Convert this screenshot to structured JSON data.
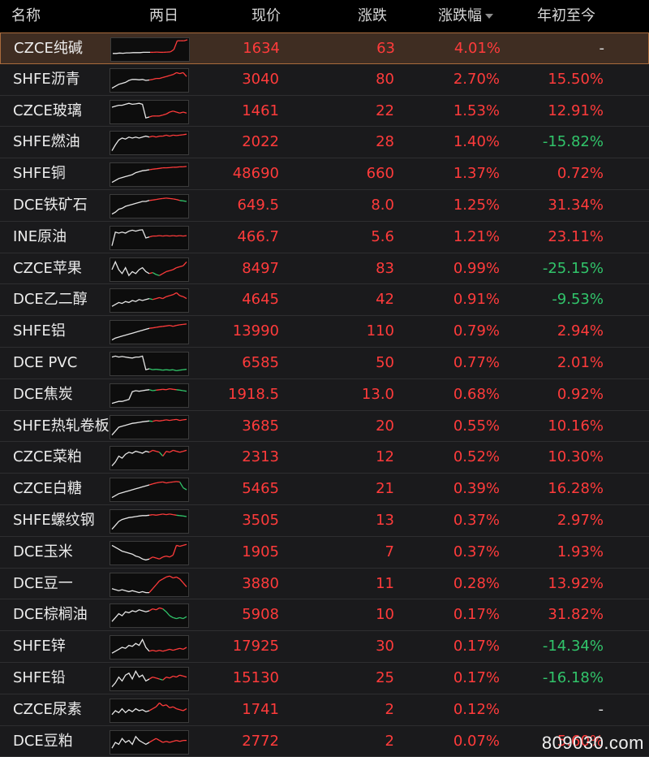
{
  "header": {
    "name": "名称",
    "chart": "两日",
    "price": "现价",
    "change": "涨跌",
    "pct": "涨跌幅",
    "ytd": "年初至今"
  },
  "colors": {
    "up": "#ff3b3b",
    "down": "#31c46a",
    "flat": "#e0e0e0"
  },
  "rows": [
    {
      "name": "CZCE纯碱",
      "price": "1634",
      "change": "63",
      "pct": "4.01%",
      "ytd": "-",
      "ytd_dir": "flat",
      "selected": true,
      "spark": [
        0.3,
        0.3,
        0.32,
        0.31,
        0.33,
        0.33,
        0.34,
        0.34,
        0.34,
        0.36,
        0.36,
        0.36,
        0.36,
        0.37,
        0.36,
        0.36,
        0.37,
        0.38,
        0.5,
        0.95,
        0.95,
        0.95,
        1.0
      ]
    },
    {
      "name": "SHFE沥青",
      "price": "3040",
      "change": "80",
      "pct": "2.70%",
      "ytd": "15.50%",
      "ytd_dir": "up",
      "spark": [
        0.1,
        0.2,
        0.3,
        0.35,
        0.4,
        0.5,
        0.55,
        0.55,
        0.53,
        0.55,
        0.5,
        0.52,
        0.55,
        0.6,
        0.6,
        0.65,
        0.7,
        0.75,
        0.8,
        0.9,
        0.85,
        0.9,
        0.7
      ]
    },
    {
      "name": "CZCE玻璃",
      "price": "1461",
      "change": "22",
      "pct": "1.53%",
      "ytd": "12.91%",
      "ytd_dir": "up",
      "spark": [
        0.75,
        0.8,
        0.85,
        0.85,
        0.9,
        0.95,
        0.9,
        0.92,
        0.95,
        0.9,
        0.2,
        0.25,
        0.3,
        0.3,
        0.3,
        0.35,
        0.4,
        0.5,
        0.55,
        0.5,
        0.45,
        0.5,
        0.45
      ]
    },
    {
      "name": "SHFE燃油",
      "price": "2022",
      "change": "28",
      "pct": "1.40%",
      "ytd": "-15.82%",
      "ytd_dir": "down",
      "spark": [
        0.1,
        0.4,
        0.65,
        0.75,
        0.7,
        0.8,
        0.75,
        0.8,
        0.75,
        0.8,
        0.85,
        0.8,
        0.85,
        0.8,
        0.85,
        0.85,
        0.9,
        0.85,
        0.9,
        0.88,
        0.9,
        0.92,
        0.95
      ]
    },
    {
      "name": "SHFE铜",
      "price": "48690",
      "change": "660",
      "pct": "1.37%",
      "ytd": "0.72%",
      "ytd_dir": "up",
      "spark": [
        0.1,
        0.2,
        0.3,
        0.35,
        0.4,
        0.45,
        0.5,
        0.6,
        0.65,
        0.7,
        0.72,
        0.75,
        0.78,
        0.8,
        0.82,
        0.85,
        0.85,
        0.86,
        0.88,
        0.88,
        0.9,
        0.9,
        0.92
      ]
    },
    {
      "name": "DCE铁矿石",
      "price": "649.5",
      "change": "8.0",
      "pct": "1.25%",
      "ytd": "31.34%",
      "ytd_dir": "up",
      "spark": [
        0.1,
        0.2,
        0.35,
        0.4,
        0.5,
        0.55,
        0.6,
        0.65,
        0.7,
        0.75,
        0.75,
        0.8,
        0.82,
        0.85,
        0.88,
        0.9,
        0.92,
        0.9,
        0.88,
        0.85,
        0.8,
        0.78,
        0.75
      ]
    },
    {
      "name": "INE原油",
      "price": "466.7",
      "change": "5.6",
      "pct": "1.21%",
      "ytd": "23.11%",
      "ytd_dir": "up",
      "spark": [
        0.1,
        0.8,
        0.75,
        0.8,
        0.75,
        0.85,
        0.9,
        0.85,
        0.9,
        0.92,
        0.5,
        0.55,
        0.6,
        0.6,
        0.62,
        0.6,
        0.62,
        0.6,
        0.62,
        0.6,
        0.62,
        0.6,
        0.62
      ]
    },
    {
      "name": "CZCE苹果",
      "price": "8497",
      "change": "83",
      "pct": "0.99%",
      "ytd": "-25.15%",
      "ytd_dir": "down",
      "spark": [
        0.5,
        0.9,
        0.5,
        0.3,
        0.6,
        0.2,
        0.4,
        0.3,
        0.5,
        0.6,
        0.4,
        0.3,
        0.35,
        0.25,
        0.2,
        0.3,
        0.4,
        0.45,
        0.5,
        0.6,
        0.65,
        0.7,
        0.9
      ]
    },
    {
      "name": "DCE乙二醇",
      "price": "4645",
      "change": "42",
      "pct": "0.91%",
      "ytd": "-9.53%",
      "ytd_dir": "down",
      "spark": [
        0.2,
        0.3,
        0.4,
        0.35,
        0.45,
        0.4,
        0.5,
        0.45,
        0.55,
        0.5,
        0.55,
        0.6,
        0.55,
        0.6,
        0.65,
        0.6,
        0.7,
        0.75,
        0.8,
        0.9,
        0.75,
        0.7,
        0.6
      ]
    },
    {
      "name": "SHFE铝",
      "price": "13990",
      "change": "110",
      "pct": "0.79%",
      "ytd": "2.94%",
      "ytd_dir": "up",
      "spark": [
        0.1,
        0.2,
        0.25,
        0.3,
        0.35,
        0.4,
        0.45,
        0.5,
        0.55,
        0.6,
        0.65,
        0.7,
        0.72,
        0.75,
        0.78,
        0.8,
        0.82,
        0.85,
        0.8,
        0.85,
        0.88,
        0.9,
        0.92
      ]
    },
    {
      "name": "DCE PVC",
      "price": "6585",
      "change": "50",
      "pct": "0.77%",
      "ytd": "2.01%",
      "ytd_dir": "up",
      "spark": [
        0.85,
        0.9,
        0.85,
        0.88,
        0.85,
        0.82,
        0.8,
        0.85,
        0.85,
        0.9,
        0.2,
        0.25,
        0.2,
        0.22,
        0.2,
        0.18,
        0.2,
        0.18,
        0.2,
        0.15,
        0.18,
        0.2,
        0.22
      ]
    },
    {
      "name": "DCE焦炭",
      "price": "1918.5",
      "change": "13.0",
      "pct": "0.68%",
      "ytd": "0.92%",
      "ytd_dir": "up",
      "spark": [
        0.1,
        0.15,
        0.2,
        0.2,
        0.25,
        0.3,
        0.7,
        0.75,
        0.72,
        0.75,
        0.78,
        0.8,
        0.75,
        0.78,
        0.8,
        0.82,
        0.8,
        0.85,
        0.82,
        0.8,
        0.78,
        0.75,
        0.72
      ]
    },
    {
      "name": "SHFE热轧卷板",
      "price": "3685",
      "change": "20",
      "pct": "0.55%",
      "ytd": "10.16%",
      "ytd_dir": "up",
      "spark": [
        0.1,
        0.3,
        0.5,
        0.55,
        0.6,
        0.65,
        0.7,
        0.72,
        0.75,
        0.78,
        0.8,
        0.82,
        0.8,
        0.85,
        0.82,
        0.85,
        0.88,
        0.85,
        0.88,
        0.9,
        0.85,
        0.88,
        0.9
      ]
    },
    {
      "name": "CZCE菜粕",
      "price": "2313",
      "change": "12",
      "pct": "0.52%",
      "ytd": "10.30%",
      "ytd_dir": "up",
      "spark": [
        0.1,
        0.3,
        0.6,
        0.5,
        0.7,
        0.8,
        0.75,
        0.85,
        0.8,
        0.75,
        0.85,
        0.8,
        0.9,
        0.85,
        0.8,
        0.6,
        0.85,
        0.8,
        0.9,
        0.85,
        0.8,
        0.85,
        0.9
      ]
    },
    {
      "name": "CZCE白糖",
      "price": "5465",
      "change": "21",
      "pct": "0.39%",
      "ytd": "16.28%",
      "ytd_dir": "up",
      "spark": [
        0.1,
        0.2,
        0.3,
        0.35,
        0.4,
        0.45,
        0.5,
        0.55,
        0.6,
        0.65,
        0.7,
        0.75,
        0.8,
        0.85,
        0.88,
        0.9,
        0.85,
        0.88,
        0.9,
        0.92,
        0.9,
        0.6,
        0.5
      ]
    },
    {
      "name": "SHFE螺纹钢",
      "price": "3505",
      "change": "13",
      "pct": "0.37%",
      "ytd": "2.97%",
      "ytd_dir": "up",
      "spark": [
        0.1,
        0.3,
        0.5,
        0.6,
        0.65,
        0.7,
        0.72,
        0.75,
        0.78,
        0.8,
        0.8,
        0.82,
        0.85,
        0.82,
        0.85,
        0.88,
        0.85,
        0.88,
        0.85,
        0.82,
        0.8,
        0.78,
        0.75
      ]
    },
    {
      "name": "DCE玉米",
      "price": "1905",
      "change": "7",
      "pct": "0.37%",
      "ytd": "1.93%",
      "ytd_dir": "up",
      "spark": [
        0.9,
        0.8,
        0.7,
        0.6,
        0.55,
        0.5,
        0.45,
        0.35,
        0.3,
        0.2,
        0.15,
        0.2,
        0.3,
        0.25,
        0.2,
        0.3,
        0.35,
        0.3,
        0.4,
        0.9,
        0.85,
        0.9,
        0.95
      ]
    },
    {
      "name": "DCE豆一",
      "price": "3880",
      "change": "11",
      "pct": "0.28%",
      "ytd": "13.92%",
      "ytd_dir": "up",
      "spark": [
        0.3,
        0.25,
        0.2,
        0.25,
        0.2,
        0.15,
        0.2,
        0.15,
        0.1,
        0.15,
        0.1,
        0.1,
        0.3,
        0.5,
        0.7,
        0.8,
        0.9,
        0.95,
        0.85,
        0.9,
        0.8,
        0.6,
        0.4
      ]
    },
    {
      "name": "DCE棕榈油",
      "price": "5908",
      "change": "10",
      "pct": "0.17%",
      "ytd": "31.82%",
      "ytd_dir": "up",
      "spark": [
        0.2,
        0.4,
        0.6,
        0.5,
        0.7,
        0.65,
        0.75,
        0.7,
        0.8,
        0.75,
        0.7,
        0.75,
        0.85,
        0.8,
        0.9,
        0.85,
        0.7,
        0.5,
        0.4,
        0.35,
        0.4,
        0.35,
        0.45
      ]
    },
    {
      "name": "SHFE锌",
      "price": "17925",
      "change": "30",
      "pct": "0.17%",
      "ytd": "-14.34%",
      "ytd_dir": "down",
      "spark": [
        0.2,
        0.3,
        0.4,
        0.5,
        0.45,
        0.6,
        0.55,
        0.7,
        0.6,
        0.9,
        0.5,
        0.3,
        0.35,
        0.3,
        0.35,
        0.3,
        0.35,
        0.4,
        0.35,
        0.4,
        0.45,
        0.4,
        0.5
      ]
    },
    {
      "name": "SHFE铅",
      "price": "15130",
      "change": "25",
      "pct": "0.17%",
      "ytd": "-16.18%",
      "ytd_dir": "down",
      "spark": [
        0.1,
        0.3,
        0.6,
        0.4,
        0.7,
        0.8,
        0.5,
        0.9,
        0.6,
        0.7,
        0.4,
        0.5,
        0.6,
        0.55,
        0.5,
        0.45,
        0.6,
        0.55,
        0.65,
        0.6,
        0.7,
        0.65,
        0.6
      ]
    },
    {
      "name": "CZCE尿素",
      "price": "1741",
      "change": "2",
      "pct": "0.12%",
      "ytd": "-",
      "ytd_dir": "flat",
      "spark": [
        0.3,
        0.5,
        0.4,
        0.6,
        0.4,
        0.55,
        0.45,
        0.6,
        0.5,
        0.55,
        0.45,
        0.5,
        0.6,
        0.7,
        0.9,
        0.75,
        0.8,
        0.65,
        0.7,
        0.6,
        0.55,
        0.5,
        0.6
      ]
    },
    {
      "name": "DCE豆粕",
      "price": "2772",
      "change": "2",
      "pct": "0.07%",
      "ytd": "5.60%",
      "ytd_dir": "up",
      "spark": [
        0.2,
        0.5,
        0.4,
        0.7,
        0.5,
        0.6,
        0.4,
        0.8,
        0.6,
        0.5,
        0.4,
        0.5,
        0.6,
        0.7,
        0.6,
        0.5,
        0.55,
        0.5,
        0.55,
        0.6,
        0.55,
        0.6,
        0.6
      ]
    }
  ],
  "watermark": "809030.com"
}
